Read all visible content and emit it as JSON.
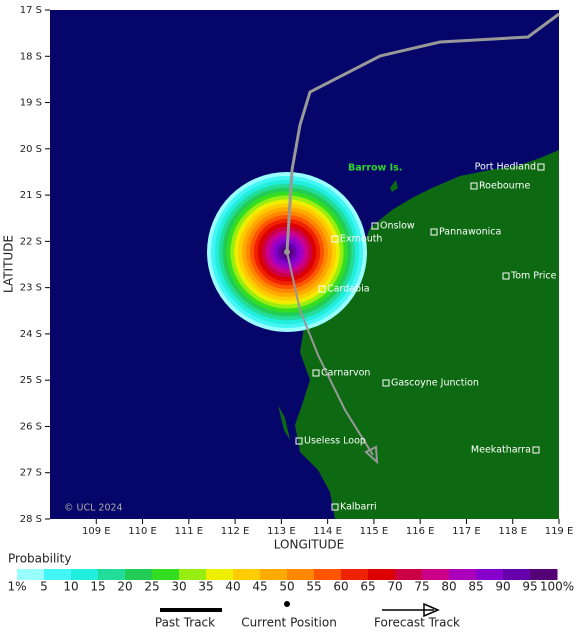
{
  "map": {
    "lat_ticks": [
      "17 S",
      "18 S",
      "19 S",
      "20 S",
      "21 S",
      "22 S",
      "23 S",
      "24 S",
      "25 S",
      "26 S",
      "27 S",
      "28 S"
    ],
    "lon_ticks": [
      "109 E",
      "110 E",
      "111 E",
      "112 E",
      "113 E",
      "114 E",
      "115 E",
      "116 E",
      "117 E",
      "118 E",
      "119 E"
    ],
    "x_label": "LONGITUDE",
    "y_label": "LATITUDE",
    "island_label": "Barrow Is.",
    "copyright": "© UCL 2024",
    "places": [
      {
        "label": "Port Hedland"
      },
      {
        "label": "Roebourne"
      },
      {
        "label": "Onslow"
      },
      {
        "label": "Exmouth"
      },
      {
        "label": "Pannawonica"
      },
      {
        "label": "Tom Price"
      },
      {
        "label": "Cardabia"
      },
      {
        "label": "Carnarvon"
      },
      {
        "label": "Gascoyne Junction"
      },
      {
        "label": "Useless Loop"
      },
      {
        "label": "Meekatharra"
      },
      {
        "label": "Kalbarri"
      }
    ]
  },
  "legend": {
    "title": "Probability",
    "labels": [
      "1%",
      "5",
      "10",
      "15",
      "20",
      "25",
      "30",
      "35",
      "40",
      "45",
      "50",
      "55",
      "60",
      "65",
      "70",
      "75",
      "80",
      "85",
      "90",
      "95",
      "100%"
    ],
    "colors": [
      "#99ffff",
      "#44f5f5",
      "#22eedd",
      "#22dd99",
      "#22cc55",
      "#33dd22",
      "#99ee11",
      "#eeee00",
      "#ffcc00",
      "#ffaa00",
      "#ff8800",
      "#ff5500",
      "#ee2200",
      "#dd0000",
      "#cc0044",
      "#cc0088",
      "#aa00bb",
      "#8800cc",
      "#6600aa",
      "#550077"
    ],
    "items": [
      "Past Track",
      "Current Position",
      "Forecast Track"
    ]
  }
}
